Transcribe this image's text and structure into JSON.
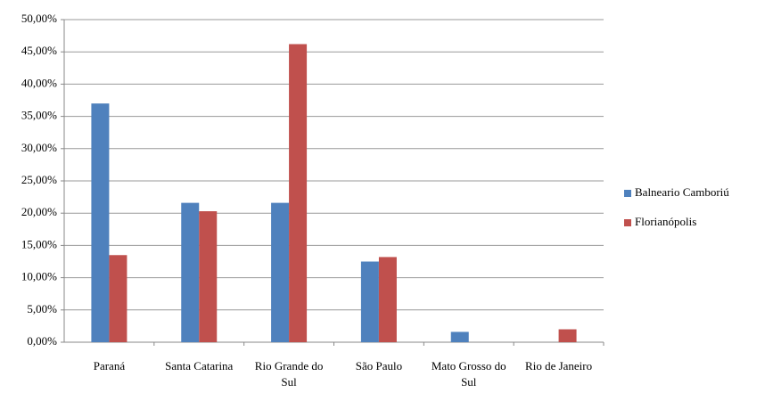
{
  "chart_data": {
    "type": "bar",
    "categories": [
      "Paraná",
      "Santa Catarina",
      "Rio Grande do Sul",
      "São Paulo",
      "Mato Grosso do Sul",
      "Rio de Janeiro"
    ],
    "series": [
      {
        "name": "Balneario Camboriú",
        "color": "#4f81bd",
        "values": [
          37.0,
          21.6,
          21.6,
          12.5,
          1.6,
          0
        ]
      },
      {
        "name": "Florianópolis",
        "color": "#c0504d",
        "values": [
          13.5,
          20.3,
          46.2,
          13.2,
          0,
          2.0
        ]
      }
    ],
    "ylim": [
      0,
      50
    ],
    "yticks": [
      {
        "value": 0,
        "label": "0,00%"
      },
      {
        "value": 5,
        "label": "5,00%"
      },
      {
        "value": 10,
        "label": "10,00%"
      },
      {
        "value": 15,
        "label": "15,00%"
      },
      {
        "value": 20,
        "label": "20,00%"
      },
      {
        "value": 25,
        "label": "25,00%"
      },
      {
        "value": 30,
        "label": "30,00%"
      },
      {
        "value": 35,
        "label": "35,00%"
      },
      {
        "value": 40,
        "label": "40,00%"
      },
      {
        "value": 45,
        "label": "45,00%"
      },
      {
        "value": 50,
        "label": "50,00%"
      }
    ],
    "grid": true,
    "legend": "right"
  }
}
